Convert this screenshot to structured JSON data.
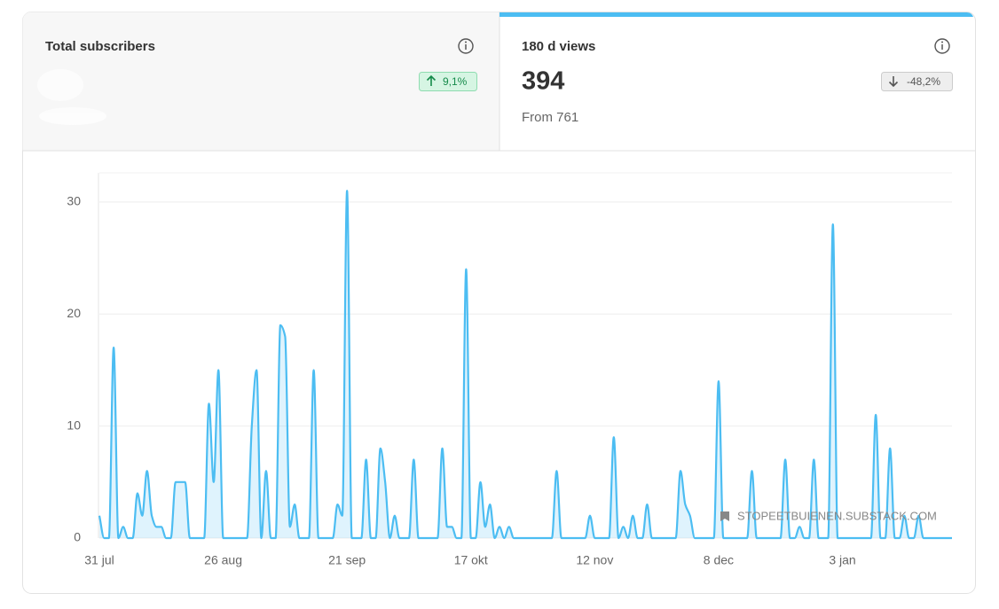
{
  "cards": [
    {
      "title": "Total subscribers",
      "change": "9,1%"
    },
    {
      "title": "180 d views",
      "value": "394",
      "change": "-48,2%",
      "note": "From 761"
    }
  ],
  "watermark": "STOPEETBUIENEN.SUBSTACK.COM",
  "chart_data": {
    "type": "area",
    "color": "#4cbdf2",
    "grid": true,
    "values": [
      2,
      0,
      0,
      17,
      0,
      1,
      0,
      0,
      4,
      2,
      6,
      2,
      1,
      1,
      0,
      0,
      5,
      5,
      5,
      0,
      0,
      0,
      0,
      12,
      5,
      15,
      0,
      0,
      0,
      0,
      0,
      0,
      10,
      15,
      0,
      6,
      0,
      0,
      19,
      18,
      1,
      3,
      0,
      0,
      0,
      15,
      0,
      0,
      0,
      0,
      3,
      2,
      31,
      0,
      0,
      0,
      7,
      0,
      0,
      8,
      5,
      0,
      2,
      0,
      0,
      0,
      7,
      0,
      0,
      0,
      0,
      0,
      8,
      1,
      1,
      0,
      0,
      24,
      0,
      0,
      5,
      1,
      3,
      0,
      1,
      0,
      1,
      0,
      0,
      0,
      0,
      0,
      0,
      0,
      0,
      0,
      6,
      0,
      0,
      0,
      0,
      0,
      0,
      2,
      0,
      0,
      0,
      0,
      9,
      0,
      1,
      0,
      2,
      0,
      0,
      3,
      0,
      0,
      0,
      0,
      0,
      0,
      6,
      3,
      2,
      0,
      0,
      0,
      0,
      0,
      14,
      0,
      0,
      0,
      0,
      0,
      0,
      6,
      0,
      0,
      0,
      0,
      0,
      0,
      7,
      0,
      0,
      1,
      0,
      0,
      7,
      0,
      0,
      0,
      28,
      0,
      0,
      0,
      0,
      0,
      0,
      0,
      0,
      11,
      0,
      0,
      8,
      0,
      0,
      2,
      0,
      0,
      2,
      0,
      0,
      0,
      0,
      0,
      0,
      0
    ],
    "ylim": [
      0,
      32.6
    ],
    "yticks": [
      0,
      10,
      20,
      30
    ],
    "xticks": [
      {
        "value": 0,
        "label": "31 jul"
      },
      {
        "value": 26,
        "label": "26 aug"
      },
      {
        "value": 52,
        "label": "21 sep"
      },
      {
        "value": 78,
        "label": "17 okt"
      },
      {
        "value": 104,
        "label": "12 nov"
      },
      {
        "value": 130,
        "label": "8 dec"
      },
      {
        "value": 156,
        "label": "3 jan"
      }
    ]
  }
}
